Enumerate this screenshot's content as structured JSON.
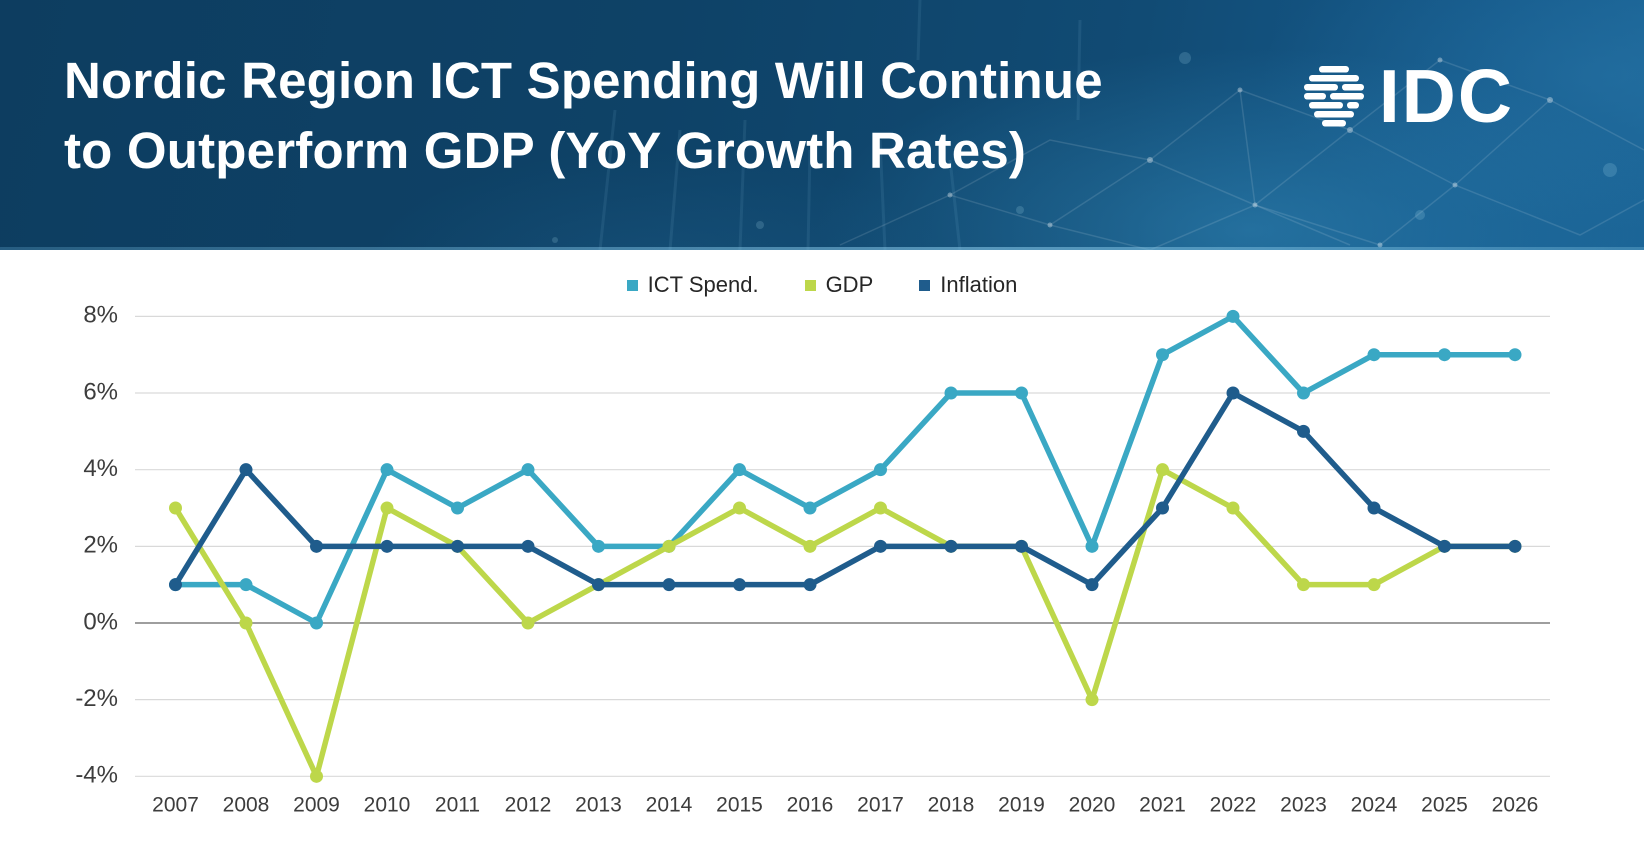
{
  "header": {
    "title_line1": "Nordic Region ICT Spending Will Continue",
    "title_line2": "to Outperform GDP (YoY Growth Rates)",
    "brand": "IDC"
  },
  "colors": {
    "ict": "#3AA8C4",
    "gdp": "#BDD74A",
    "inflation": "#1F5C8C",
    "header_bg": "#0E4066",
    "grid": "#D9D9D9",
    "zero_axis": "#9E9E9E",
    "axis_text": "#3D3D3D",
    "title_text": "#FFFFFF"
  },
  "legend": {
    "items": [
      {
        "key": "ict",
        "label": "ICT Spend."
      },
      {
        "key": "gdp",
        "label": "GDP"
      },
      {
        "key": "inflation",
        "label": "Inflation"
      }
    ]
  },
  "chart_data": {
    "type": "line",
    "title": "Nordic Region ICT Spending Will Continue to Outperform GDP (YoY Growth Rates)",
    "xlabel": "",
    "ylabel": "",
    "grid": true,
    "legend_position": "top",
    "ylim": [
      -4,
      8
    ],
    "yticks": [
      {
        "value": 8,
        "label": "8%"
      },
      {
        "value": 6,
        "label": "6%"
      },
      {
        "value": 4,
        "label": "4%"
      },
      {
        "value": 2,
        "label": "2%"
      },
      {
        "value": 0,
        "label": "0%"
      },
      {
        "value": -2,
        "label": "-2%"
      },
      {
        "value": -4,
        "label": "-4%"
      }
    ],
    "categories": [
      "2007",
      "2008",
      "2009",
      "2010",
      "2011",
      "2012",
      "2013",
      "2014",
      "2015",
      "2016",
      "2017",
      "2018",
      "2019",
      "2020",
      "2021",
      "2022",
      "2023",
      "2024",
      "2025",
      "2026"
    ],
    "series": [
      {
        "name": "ICT Spend.",
        "color_key": "ict",
        "values": [
          1,
          1,
          0,
          4,
          3,
          4,
          2,
          2,
          4,
          3,
          4,
          6,
          6,
          2,
          7,
          8,
          6,
          7,
          7,
          7
        ]
      },
      {
        "name": "GDP",
        "color_key": "gdp",
        "values": [
          3,
          0,
          -4,
          3,
          2,
          0,
          1,
          2,
          3,
          2,
          3,
          2,
          2,
          -2,
          4,
          3,
          1,
          1,
          2,
          2
        ]
      },
      {
        "name": "Inflation",
        "color_key": "inflation",
        "values": [
          1,
          4,
          2,
          2,
          2,
          2,
          1,
          1,
          1,
          1,
          2,
          2,
          2,
          1,
          3,
          6,
          5,
          3,
          2,
          2
        ]
      }
    ]
  }
}
